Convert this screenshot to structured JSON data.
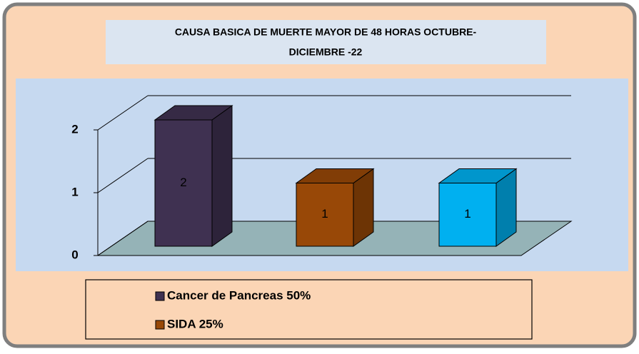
{
  "chart_data": {
    "type": "bar3d",
    "title": "CAUSA BASICA DE MUERTE MAYOR DE 48 HORAS OCTUBRE-DICIEMBRE -22",
    "categories": [
      null,
      null,
      null
    ],
    "values": [
      2,
      1,
      1
    ],
    "colors": [
      "#3f3151",
      "#984807",
      "#00b0f0"
    ],
    "legend": [
      "Cancer de Pancreas 50%",
      "SIDA 25%"
    ],
    "ylim": [
      0,
      2
    ],
    "yticks": [
      0,
      1,
      2
    ],
    "grid": true
  }
}
